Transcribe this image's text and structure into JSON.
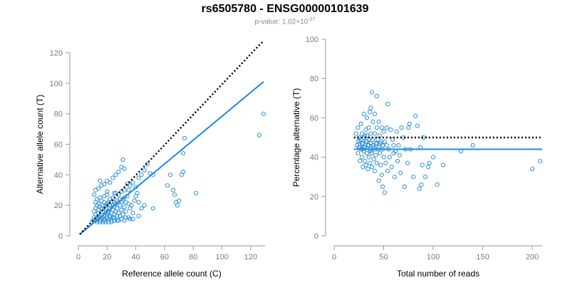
{
  "title": "rs6505780 - ENSG00000101639",
  "subtitle": {
    "prefix": "p-value: 1.02×10",
    "exponent": "-27"
  },
  "chart_data": [
    {
      "type": "scatter",
      "xlabel": "Reference allele count (C)",
      "ylabel": "Alternative allele count (T)",
      "xlim": [
        0,
        130
      ],
      "ylim": [
        0,
        120
      ],
      "xticks": [
        "0",
        "20",
        "40",
        "60",
        "80",
        "100",
        "120"
      ],
      "yticks": [
        "0",
        "20",
        "40",
        "60",
        "80",
        "100",
        "120"
      ],
      "grid": false,
      "colors": {
        "points": "#2f8fd8",
        "fit": "#1e88e5",
        "reference": "#000000"
      },
      "fit_line": {
        "x": [
          1,
          129
        ],
        "y": [
          1,
          101
        ]
      },
      "reference_line": {
        "x": [
          1,
          129
        ],
        "y": [
          1,
          128
        ]
      },
      "points": [
        [
          10,
          10
        ],
        [
          11,
          12
        ],
        [
          12,
          14
        ],
        [
          12,
          10
        ],
        [
          13,
          11
        ],
        [
          14,
          12
        ],
        [
          14,
          15
        ],
        [
          15,
          13
        ],
        [
          15,
          10
        ],
        [
          16,
          11
        ],
        [
          16,
          14
        ],
        [
          17,
          12
        ],
        [
          17,
          16
        ],
        [
          18,
          13
        ],
        [
          18,
          10
        ],
        [
          19,
          15
        ],
        [
          19,
          18
        ],
        [
          20,
          12
        ],
        [
          20,
          14
        ],
        [
          21,
          16
        ],
        [
          21,
          11
        ],
        [
          22,
          13
        ],
        [
          22,
          18
        ],
        [
          23,
          15
        ],
        [
          24,
          12
        ],
        [
          24,
          17
        ],
        [
          25,
          14
        ],
        [
          25,
          19
        ],
        [
          26,
          16
        ],
        [
          27,
          13
        ],
        [
          27,
          18
        ],
        [
          28,
          15
        ],
        [
          29,
          20
        ],
        [
          30,
          17
        ],
        [
          31,
          14
        ],
        [
          32,
          19
        ],
        [
          33,
          16
        ],
        [
          35,
          21
        ],
        [
          36,
          18
        ],
        [
          38,
          15
        ],
        [
          11,
          16
        ],
        [
          12,
          18
        ],
        [
          13,
          20
        ],
        [
          14,
          17
        ],
        [
          15,
          19
        ],
        [
          16,
          18
        ],
        [
          17,
          20
        ],
        [
          18,
          22
        ],
        [
          19,
          20
        ],
        [
          20,
          21
        ],
        [
          21,
          22
        ],
        [
          22,
          20
        ],
        [
          23,
          22
        ],
        [
          24,
          20
        ],
        [
          25,
          22
        ],
        [
          26,
          21
        ],
        [
          27,
          23
        ],
        [
          28,
          22
        ],
        [
          29,
          24
        ],
        [
          30,
          22
        ],
        [
          31,
          24
        ],
        [
          32,
          25
        ],
        [
          33,
          22
        ],
        [
          34,
          26
        ],
        [
          12,
          22
        ],
        [
          13,
          24
        ],
        [
          14,
          21
        ],
        [
          15,
          25
        ],
        [
          16,
          23
        ],
        [
          18,
          26
        ],
        [
          20,
          27
        ],
        [
          22,
          24
        ],
        [
          24,
          25
        ],
        [
          26,
          28
        ],
        [
          28,
          27
        ],
        [
          30,
          29
        ],
        [
          32,
          30
        ],
        [
          11,
          27
        ],
        [
          12,
          30
        ],
        [
          14,
          31
        ],
        [
          16,
          33
        ],
        [
          18,
          34
        ],
        [
          20,
          36
        ],
        [
          22,
          35
        ],
        [
          24,
          38
        ],
        [
          26,
          40
        ],
        [
          28,
          42
        ],
        [
          30,
          45
        ],
        [
          32,
          44
        ],
        [
          31,
          50
        ],
        [
          20,
          29
        ],
        [
          25,
          28
        ],
        [
          15,
          36
        ],
        [
          35,
          30
        ],
        [
          36,
          33
        ],
        [
          38,
          35
        ],
        [
          40,
          32
        ],
        [
          42,
          38
        ],
        [
          44,
          40
        ],
        [
          46,
          43
        ],
        [
          48,
          47
        ],
        [
          50,
          41
        ],
        [
          52,
          40
        ],
        [
          40,
          26
        ],
        [
          42,
          22
        ],
        [
          44,
          18
        ],
        [
          38,
          11
        ],
        [
          42,
          13
        ],
        [
          46,
          20
        ],
        [
          52,
          18
        ],
        [
          62,
          33
        ],
        [
          64,
          40
        ],
        [
          66,
          30
        ],
        [
          67,
          27
        ],
        [
          68,
          22
        ],
        [
          69,
          20
        ],
        [
          70,
          23
        ],
        [
          72,
          40
        ],
        [
          73,
          42
        ],
        [
          73,
          54
        ],
        [
          74,
          64
        ],
        [
          82,
          28
        ],
        [
          126,
          66
        ],
        [
          129,
          80
        ],
        [
          18,
          11
        ],
        [
          22,
          12
        ],
        [
          25,
          12
        ],
        [
          27,
          10
        ],
        [
          30,
          11
        ],
        [
          33,
          12
        ],
        [
          35,
          12
        ],
        [
          29,
          13
        ],
        [
          21,
          15
        ],
        [
          23,
          10
        ],
        [
          37,
          20
        ],
        [
          39,
          23
        ],
        [
          41,
          28
        ],
        [
          34,
          34
        ],
        [
          13,
          9
        ],
        [
          15,
          9
        ],
        [
          17,
          9
        ],
        [
          19,
          9
        ],
        [
          21,
          9
        ],
        [
          23,
          9
        ],
        [
          25,
          10
        ],
        [
          28,
          10
        ],
        [
          32,
          10
        ],
        [
          36,
          11
        ]
      ]
    },
    {
      "type": "scatter",
      "xlabel": "Total number of reads",
      "ylabel": "Percentage alternative (T)",
      "xlim": [
        0,
        210
      ],
      "ylim": [
        0,
        100
      ],
      "xticks": [
        "0",
        "50",
        "100",
        "150",
        "200"
      ],
      "yticks": [
        "0",
        "20",
        "40",
        "60",
        "80",
        "100"
      ],
      "grid": false,
      "colors": {
        "points": "#2f8fd8",
        "fit": "#1e88e5",
        "reference": "#000000"
      },
      "fit_line": {
        "x": [
          20,
          210
        ],
        "y": [
          44,
          44
        ]
      },
      "reference_line": {
        "x": [
          20,
          210
        ],
        "y": [
          50,
          50
        ]
      },
      "points": [
        [
          22,
          52
        ],
        [
          23,
          46
        ],
        [
          24,
          55
        ],
        [
          24,
          42
        ],
        [
          25,
          50
        ],
        [
          26,
          48
        ],
        [
          26,
          38
        ],
        [
          27,
          57
        ],
        [
          27,
          44
        ],
        [
          28,
          52
        ],
        [
          28,
          40
        ],
        [
          29,
          47
        ],
        [
          29,
          35
        ],
        [
          30,
          62
        ],
        [
          30,
          50
        ],
        [
          30,
          43
        ],
        [
          31,
          45
        ],
        [
          31,
          38
        ],
        [
          32,
          54
        ],
        [
          32,
          48
        ],
        [
          32,
          36
        ],
        [
          33,
          51
        ],
        [
          33,
          42
        ],
        [
          33,
          60
        ],
        [
          34,
          46
        ],
        [
          34,
          34
        ],
        [
          35,
          55
        ],
        [
          35,
          49
        ],
        [
          35,
          40
        ],
        [
          36,
          63
        ],
        [
          36,
          44
        ],
        [
          36,
          37
        ],
        [
          37,
          65
        ],
        [
          37,
          52
        ],
        [
          37,
          47
        ],
        [
          38,
          73
        ],
        [
          38,
          42
        ],
        [
          38,
          35
        ],
        [
          39,
          58
        ],
        [
          39,
          49
        ],
        [
          40,
          45
        ],
        [
          40,
          39
        ],
        [
          41,
          62
        ],
        [
          41,
          52
        ],
        [
          41,
          33
        ],
        [
          42,
          47
        ],
        [
          42,
          41
        ],
        [
          43,
          71
        ],
        [
          43,
          55
        ],
        [
          43,
          37
        ],
        [
          44,
          49
        ],
        [
          44,
          44
        ],
        [
          45,
          58
        ],
        [
          45,
          28
        ],
        [
          46,
          51
        ],
        [
          46,
          42
        ],
        [
          47,
          47
        ],
        [
          47,
          36
        ],
        [
          48,
          55
        ],
        [
          48,
          31
        ],
        [
          49,
          44
        ],
        [
          49,
          25
        ],
        [
          50,
          53
        ],
        [
          50,
          40
        ],
        [
          51,
          48
        ],
        [
          51,
          22
        ],
        [
          52,
          37
        ],
        [
          53,
          46
        ],
        [
          53,
          55
        ],
        [
          54,
          67
        ],
        [
          54,
          33
        ],
        [
          55,
          44
        ],
        [
          56,
          40
        ],
        [
          57,
          54
        ],
        [
          58,
          35
        ],
        [
          59,
          49
        ],
        [
          60,
          42
        ],
        [
          60,
          46
        ],
        [
          61,
          30
        ],
        [
          62,
          43
        ],
        [
          63,
          53
        ],
        [
          64,
          38
        ],
        [
          65,
          46
        ],
        [
          66,
          41
        ],
        [
          67,
          32
        ],
        [
          68,
          55
        ],
        [
          70,
          50
        ],
        [
          71,
          25
        ],
        [
          72,
          44
        ],
        [
          74,
          37
        ],
        [
          75,
          55
        ],
        [
          76,
          57
        ],
        [
          77,
          44
        ],
        [
          80,
          30
        ],
        [
          82,
          61
        ],
        [
          84,
          56
        ],
        [
          86,
          24
        ],
        [
          87,
          45
        ],
        [
          88,
          26
        ],
        [
          89,
          36
        ],
        [
          90,
          50
        ],
        [
          92,
          30
        ],
        [
          95,
          35
        ],
        [
          96,
          37
        ],
        [
          100,
          40
        ],
        [
          104,
          26
        ],
        [
          110,
          36
        ],
        [
          128,
          43
        ],
        [
          140,
          46
        ],
        [
          200,
          34
        ],
        [
          208,
          38
        ],
        [
          25,
          45
        ],
        [
          27,
          49
        ],
        [
          29,
          44
        ],
        [
          31,
          51
        ],
        [
          33,
          48
        ],
        [
          35,
          46
        ],
        [
          37,
          43
        ],
        [
          39,
          46
        ],
        [
          41,
          44
        ],
        [
          43,
          47
        ],
        [
          45,
          45
        ],
        [
          47,
          48
        ],
        [
          49,
          46
        ],
        [
          24,
          48
        ],
        [
          26,
          45
        ],
        [
          28,
          47
        ],
        [
          30,
          45
        ]
      ]
    }
  ]
}
